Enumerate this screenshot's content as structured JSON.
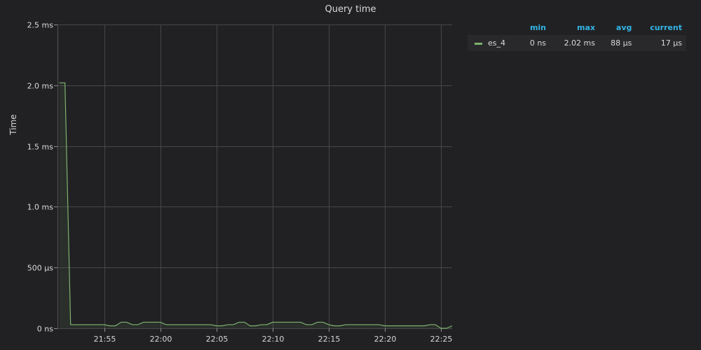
{
  "panel": {
    "title": "Query time"
  },
  "legend": {
    "headers": [
      "min",
      "max",
      "avg",
      "current"
    ],
    "rows": [
      {
        "series": "es_4",
        "min": "0 ns",
        "max": "2.02 ms",
        "avg": "88 µs",
        "current": "17 µs",
        "color": "#7eb26d"
      }
    ]
  },
  "chart_data": {
    "type": "area",
    "title": "Query time",
    "ylabel": "Time",
    "xlabel": "",
    "ylim": [
      0,
      2.5
    ],
    "yunit": "ms",
    "y_ticks": [
      {
        "value": 0,
        "label": "0 ns"
      },
      {
        "value": 0.5,
        "label": "500 µs"
      },
      {
        "value": 1.0,
        "label": "1.0 ms"
      },
      {
        "value": 1.5,
        "label": "1.5 ms"
      },
      {
        "value": 2.0,
        "label": "2.0 ms"
      },
      {
        "value": 2.5,
        "label": "2.5 ms"
      }
    ],
    "xlim": [
      "21:51",
      "22:25"
    ],
    "x_ticks": [
      "21:55",
      "22:00",
      "22:05",
      "22:10",
      "22:15",
      "22:20",
      "22:25"
    ],
    "grid": true,
    "series": [
      {
        "name": "es_4",
        "color": "#7eb26d",
        "points": [
          [
            "21:51:00",
            2.02
          ],
          [
            "21:51:30",
            2.02
          ],
          [
            "21:52:00",
            0.03
          ],
          [
            "21:52:30",
            0.03
          ],
          [
            "21:53:00",
            0.03
          ],
          [
            "21:53:30",
            0.03
          ],
          [
            "21:54:00",
            0.03
          ],
          [
            "21:54:30",
            0.03
          ],
          [
            "21:55:00",
            0.03
          ],
          [
            "21:55:30",
            0.02
          ],
          [
            "21:56:00",
            0.02
          ],
          [
            "21:56:30",
            0.05
          ],
          [
            "21:57:00",
            0.05
          ],
          [
            "21:57:30",
            0.03
          ],
          [
            "21:58:00",
            0.03
          ],
          [
            "21:58:30",
            0.05
          ],
          [
            "21:59:00",
            0.05
          ],
          [
            "21:59:30",
            0.05
          ],
          [
            "22:00:00",
            0.05
          ],
          [
            "22:00:30",
            0.03
          ],
          [
            "22:01:00",
            0.03
          ],
          [
            "22:01:30",
            0.03
          ],
          [
            "22:02:00",
            0.03
          ],
          [
            "22:02:30",
            0.03
          ],
          [
            "22:03:00",
            0.03
          ],
          [
            "22:03:30",
            0.03
          ],
          [
            "22:04:00",
            0.03
          ],
          [
            "22:04:30",
            0.03
          ],
          [
            "22:05:00",
            0.02
          ],
          [
            "22:05:30",
            0.02
          ],
          [
            "22:06:00",
            0.03
          ],
          [
            "22:06:30",
            0.03
          ],
          [
            "22:07:00",
            0.05
          ],
          [
            "22:07:30",
            0.05
          ],
          [
            "22:08:00",
            0.02
          ],
          [
            "22:08:30",
            0.02
          ],
          [
            "22:09:00",
            0.03
          ],
          [
            "22:09:30",
            0.03
          ],
          [
            "22:10:00",
            0.05
          ],
          [
            "22:10:30",
            0.05
          ],
          [
            "22:11:00",
            0.05
          ],
          [
            "22:11:30",
            0.05
          ],
          [
            "22:12:00",
            0.05
          ],
          [
            "22:12:30",
            0.05
          ],
          [
            "22:13:00",
            0.03
          ],
          [
            "22:13:30",
            0.03
          ],
          [
            "22:14:00",
            0.05
          ],
          [
            "22:14:30",
            0.05
          ],
          [
            "22:15:00",
            0.03
          ],
          [
            "22:15:30",
            0.02
          ],
          [
            "22:16:00",
            0.02
          ],
          [
            "22:16:30",
            0.03
          ],
          [
            "22:17:00",
            0.03
          ],
          [
            "22:17:30",
            0.03
          ],
          [
            "22:18:00",
            0.03
          ],
          [
            "22:18:30",
            0.03
          ],
          [
            "22:19:00",
            0.03
          ],
          [
            "22:19:30",
            0.03
          ],
          [
            "22:20:00",
            0.02
          ],
          [
            "22:20:30",
            0.02
          ],
          [
            "22:21:00",
            0.02
          ],
          [
            "22:21:30",
            0.02
          ],
          [
            "22:22:00",
            0.02
          ],
          [
            "22:22:30",
            0.02
          ],
          [
            "22:23:00",
            0.02
          ],
          [
            "22:23:30",
            0.02
          ],
          [
            "22:24:00",
            0.03
          ],
          [
            "22:24:30",
            0.03
          ],
          [
            "22:25:00",
            0.0
          ],
          [
            "22:25:30",
            0.0
          ],
          [
            "22:26:00",
            0.02
          ]
        ]
      }
    ]
  }
}
